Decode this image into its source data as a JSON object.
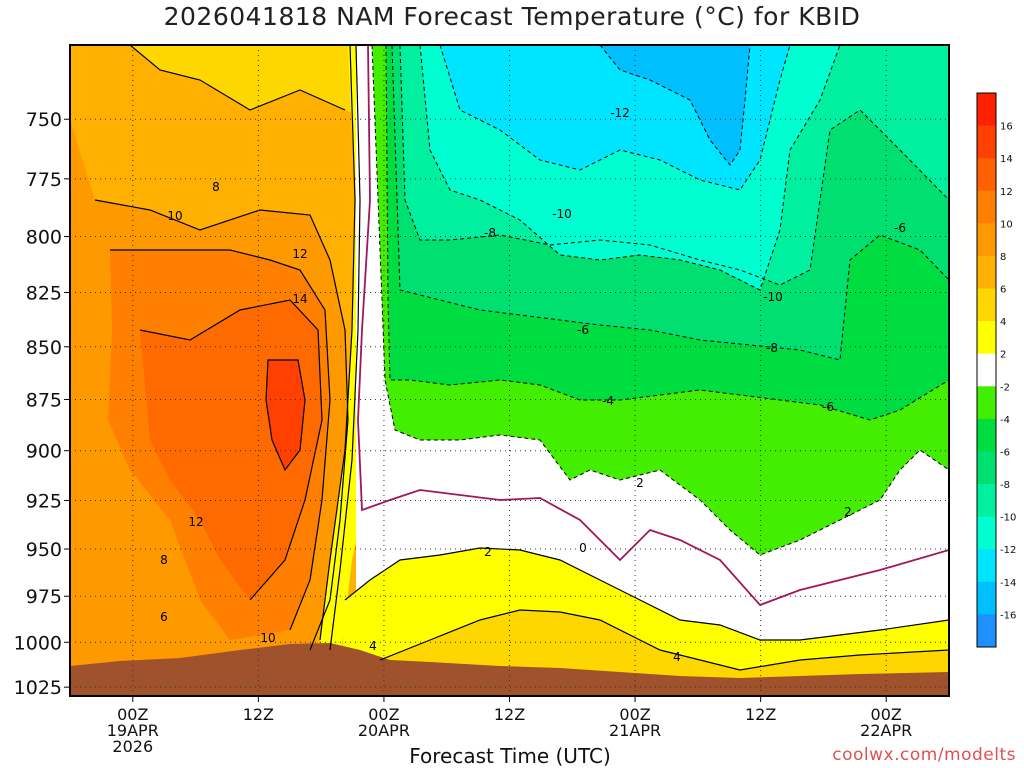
{
  "chart_data": {
    "type": "heatmap",
    "title": "2026041818 NAM Forecast Temperature (°C) for KBID",
    "xlabel": "Forecast Time (UTC)",
    "ylabel": "",
    "y_scale": "pressure (log)",
    "y_range": [
      1030,
      720
    ],
    "y_ticks": [
      750,
      775,
      800,
      825,
      850,
      875,
      900,
      925,
      950,
      975,
      1000,
      1025
    ],
    "x_range_hours": [
      -6,
      78
    ],
    "x_ticks": [
      {
        "hour": 0,
        "line1": "00Z",
        "line2": "19APR",
        "line3": "2026"
      },
      {
        "hour": 12,
        "line1": "12Z",
        "line2": "",
        "line3": ""
      },
      {
        "hour": 24,
        "line1": "00Z",
        "line2": "20APR",
        "line3": ""
      },
      {
        "hour": 36,
        "line1": "12Z",
        "line2": "",
        "line3": ""
      },
      {
        "hour": 48,
        "line1": "00Z",
        "line2": "21APR",
        "line3": ""
      },
      {
        "hour": 60,
        "line1": "12Z",
        "line2": "",
        "line3": ""
      },
      {
        "hour": 72,
        "line1": "00Z",
        "line2": "22APR",
        "line3": ""
      }
    ],
    "colorbar": {
      "levels": [
        "-16",
        "-14",
        "-12",
        "-10",
        "-8",
        "-6",
        "-4",
        "-2",
        "2",
        "4",
        "6",
        "8",
        "10",
        "12",
        "14",
        "16"
      ],
      "colors": [
        "#1e90ff",
        "#00bfff",
        "#00e5ff",
        "#00ffd0",
        "#00f0a0",
        "#00e070",
        "#00dd40",
        "#44ee00",
        "#ffffff",
        "#ffff00",
        "#ffd700",
        "#ffb000",
        "#ff9900",
        "#ff8000",
        "#ff6000",
        "#ff4000",
        "#ff2000"
      ]
    },
    "contour_labels": [
      "8",
      "10",
      "12",
      "14",
      "12",
      "10",
      "8",
      "6",
      "4",
      "-12",
      "-10",
      "-10",
      "-8",
      "-8",
      "-6",
      "-6",
      "-6",
      "-4",
      "2",
      "2",
      "2",
      "0",
      "4"
    ],
    "credit": "coolwx.com/modelts"
  }
}
